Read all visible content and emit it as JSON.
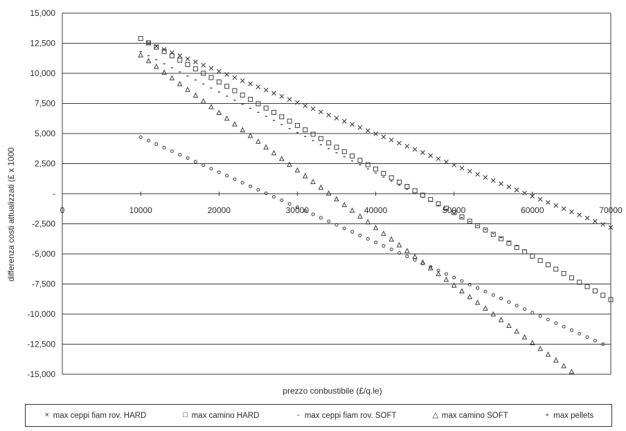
{
  "chart_data": {
    "type": "scatter",
    "title": "",
    "xlabel": "prezzo conbustibile  (£/q.le)",
    "ylabel": "differenza costi attualizzati (£ x 1000",
    "xlim": [
      0,
      70000
    ],
    "ylim": [
      -15000,
      15000
    ],
    "x_ticks": [
      "0",
      "10000",
      "20000",
      "30000",
      "40000",
      "50000",
      "60000",
      "70000"
    ],
    "y_ticks": [
      "15,000",
      "12,500",
      "10,000",
      "7,500",
      "5,000",
      "2,500",
      "-",
      "-2,500",
      "-5,000",
      "-7,500",
      "-10,000",
      "-12,500",
      "-15,000"
    ],
    "grid": "horizontal",
    "legend_position": "bottom",
    "series": [
      {
        "name": "max ceppi fiam rov. HARD",
        "marker": "x",
        "x_start": 11000,
        "x_end": 70000,
        "x_step": 1000,
        "y_start": 12500,
        "y_end": -2800
      },
      {
        "name": "max camino HARD",
        "marker": "square",
        "x_start": 10000,
        "x_end": 70000,
        "x_step": 1000,
        "y_start": 12900,
        "y_end": -8800
      },
      {
        "name": "max ceppi fiam rov. SOFT",
        "marker": "dash",
        "x_start": 10000,
        "x_end": 60000,
        "x_step": 1000,
        "y_start": 11800,
        "y_end": -5000
      },
      {
        "name": "max camino SOFT",
        "marker": "triangle",
        "x_start": 10000,
        "x_end": 65000,
        "x_step": 1000,
        "y_start": 11500,
        "y_end": -14800
      },
      {
        "name": "max pellets",
        "marker": "circle",
        "x_start": 10000,
        "x_end": 69000,
        "x_step": 1000,
        "y_start": 4700,
        "y_end": -12500
      }
    ]
  }
}
